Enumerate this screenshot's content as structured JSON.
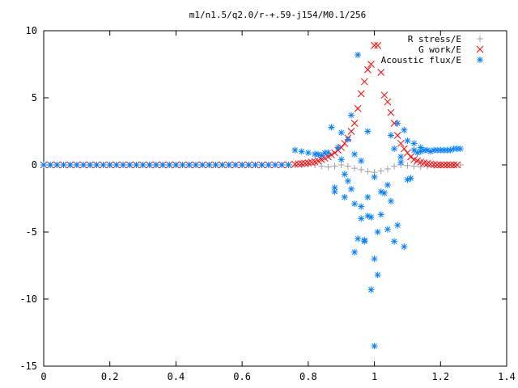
{
  "chart_data": {
    "type": "scatter",
    "title": "m1/n1.5/q2.0/r-+.59-j154/M0.1/256",
    "xlabel": "",
    "ylabel": "",
    "xlim": [
      0,
      1.4
    ],
    "ylim": [
      -15,
      10
    ],
    "x_ticks": [
      "0",
      "0.2",
      "0.4",
      "0.6",
      "0.8",
      "1",
      "1.2",
      "1.4"
    ],
    "y_ticks": [
      "10",
      "5",
      "0",
      "-5",
      "-10",
      "-15"
    ],
    "grid": false,
    "legend_position": "top-right",
    "series": [
      {
        "name": "R stress/E",
        "marker": "plus",
        "color": "#a0a0a0",
        "x": [
          0.0,
          0.02,
          0.04,
          0.06,
          0.08,
          0.1,
          0.12,
          0.14,
          0.16,
          0.18,
          0.2,
          0.22,
          0.24,
          0.26,
          0.28,
          0.3,
          0.32,
          0.34,
          0.36,
          0.38,
          0.4,
          0.42,
          0.44,
          0.46,
          0.48,
          0.5,
          0.52,
          0.54,
          0.56,
          0.58,
          0.6,
          0.62,
          0.64,
          0.66,
          0.68,
          0.7,
          0.72,
          0.74,
          0.76,
          0.78,
          0.8,
          0.82,
          0.84,
          0.86,
          0.88,
          0.9,
          0.92,
          0.94,
          0.96,
          0.98,
          1.0,
          1.02,
          1.04,
          1.06,
          1.08,
          1.1,
          1.12,
          1.14,
          1.16,
          1.18,
          1.2,
          1.22,
          1.24,
          1.26
        ],
        "y": [
          0,
          0,
          0,
          0,
          0,
          0,
          0,
          0,
          0,
          0,
          0,
          0,
          0,
          0,
          0,
          0,
          0,
          0,
          0,
          0,
          0,
          0,
          0,
          0,
          0,
          0,
          0,
          0,
          0,
          0,
          0,
          0,
          0,
          0,
          0,
          0,
          0,
          0,
          0,
          0,
          0.05,
          0.0,
          -0.1,
          -0.15,
          -0.1,
          0.0,
          -0.1,
          -0.25,
          -0.35,
          -0.5,
          -0.55,
          -0.45,
          -0.3,
          -0.1,
          0.0,
          -0.05,
          -0.1,
          -0.15,
          -0.1,
          -0.05,
          0.0,
          0.0,
          0.0,
          0.0
        ]
      },
      {
        "name": "G work/E",
        "marker": "cross",
        "color": "#ff0000",
        "x": [
          0.0,
          0.02,
          0.04,
          0.06,
          0.08,
          0.1,
          0.12,
          0.14,
          0.16,
          0.18,
          0.2,
          0.22,
          0.24,
          0.26,
          0.28,
          0.3,
          0.32,
          0.34,
          0.36,
          0.38,
          0.4,
          0.42,
          0.44,
          0.46,
          0.48,
          0.5,
          0.52,
          0.54,
          0.56,
          0.58,
          0.6,
          0.62,
          0.64,
          0.66,
          0.68,
          0.7,
          0.72,
          0.74,
          0.76,
          0.77,
          0.78,
          0.79,
          0.8,
          0.81,
          0.82,
          0.83,
          0.84,
          0.85,
          0.86,
          0.87,
          0.88,
          0.89,
          0.9,
          0.91,
          0.92,
          0.93,
          0.94,
          0.95,
          0.96,
          0.97,
          0.98,
          0.99,
          1.0,
          1.01,
          1.02,
          1.03,
          1.04,
          1.05,
          1.06,
          1.07,
          1.08,
          1.09,
          1.1,
          1.11,
          1.12,
          1.13,
          1.14,
          1.15,
          1.16,
          1.17,
          1.18,
          1.19,
          1.2,
          1.21,
          1.22,
          1.23,
          1.24,
          1.25
        ],
        "y": [
          0,
          0,
          0,
          0,
          0,
          0,
          0,
          0,
          0,
          0,
          0,
          0,
          0,
          0,
          0,
          0,
          0,
          0,
          0,
          0,
          0,
          0,
          0,
          0,
          0,
          0,
          0,
          0,
          0,
          0,
          0,
          0,
          0,
          0,
          0,
          0,
          0,
          0,
          0.05,
          0.08,
          0.1,
          0.12,
          0.15,
          0.2,
          0.25,
          0.3,
          0.4,
          0.5,
          0.6,
          0.75,
          0.9,
          1.1,
          1.3,
          1.6,
          2.0,
          2.5,
          3.1,
          4.2,
          5.3,
          6.2,
          7.1,
          7.5,
          8.9,
          8.9,
          6.9,
          5.2,
          4.7,
          3.9,
          3.1,
          2.2,
          1.6,
          1.2,
          0.9,
          0.6,
          0.4,
          0.3,
          0.2,
          0.15,
          0.1,
          0.05,
          0.02,
          0.0,
          0.0,
          0.0,
          0.0,
          0.0,
          0.0,
          0.0
        ]
      },
      {
        "name": "Acoustic flux/E",
        "marker": "star",
        "color": "#0080ff",
        "x": [
          0.0,
          0.02,
          0.04,
          0.06,
          0.08,
          0.1,
          0.12,
          0.14,
          0.16,
          0.18,
          0.2,
          0.22,
          0.24,
          0.26,
          0.28,
          0.3,
          0.32,
          0.34,
          0.36,
          0.38,
          0.4,
          0.42,
          0.44,
          0.46,
          0.48,
          0.5,
          0.52,
          0.54,
          0.56,
          0.58,
          0.6,
          0.62,
          0.64,
          0.66,
          0.68,
          0.7,
          0.72,
          0.74,
          0.76,
          0.78,
          0.8,
          0.82,
          0.84,
          0.86,
          0.87,
          0.88,
          0.89,
          0.9,
          0.91,
          0.92,
          0.93,
          0.94,
          0.95,
          0.96,
          0.97,
          0.98,
          0.99,
          1.0,
          1.01,
          1.02,
          1.03,
          1.04,
          1.05,
          1.06,
          1.07,
          1.08,
          1.09,
          1.1,
          1.11,
          1.12,
          1.13,
          1.14,
          1.15,
          1.16,
          1.17,
          1.18,
          1.19,
          1.2,
          1.21,
          1.22,
          1.23,
          1.24,
          1.25,
          1.26,
          0.83,
          0.85,
          0.88,
          0.9,
          0.92,
          0.94,
          0.95,
          0.96,
          0.97,
          0.98,
          0.99,
          1.0,
          1.01,
          1.02,
          1.04,
          1.06,
          1.08,
          1.1,
          1.12,
          1.14,
          1.0,
          0.98,
          0.96,
          0.94,
          0.93,
          0.91,
          1.05,
          1.07,
          1.09
        ],
        "y": [
          0,
          0,
          0,
          0,
          0,
          0,
          0,
          0,
          0,
          0,
          0,
          0,
          0,
          0,
          0,
          0,
          0,
          0,
          0,
          0,
          0,
          0,
          0,
          0,
          0,
          0,
          0,
          0,
          0,
          0,
          0,
          0,
          0,
          0,
          0,
          0,
          0,
          0,
          1.1,
          1.0,
          0.9,
          0.8,
          0.7,
          0.9,
          2.8,
          -1.7,
          1.3,
          2.4,
          -2.4,
          1.9,
          -1.8,
          -2.9,
          8.2,
          -3.1,
          -5.6,
          -2.4,
          -9.3,
          -7.0,
          -5.0,
          -3.7,
          -2.1,
          -1.5,
          -2.7,
          1.2,
          -4.5,
          0.2,
          -6.1,
          1.8,
          -1.0,
          1.1,
          0.9,
          1.0,
          1.1,
          1.1,
          1.0,
          1.1,
          1.1,
          1.1,
          1.1,
          1.1,
          1.1,
          1.2,
          1.2,
          1.2,
          0.8,
          0.9,
          -2.0,
          0.4,
          -1.2,
          -6.5,
          -5.5,
          -4.0,
          -5.7,
          -3.8,
          -3.9,
          -13.5,
          -8.2,
          -2.0,
          -4.8,
          -5.7,
          0.6,
          -1.1,
          1.6,
          1.3,
          -0.9,
          2.5,
          0.3,
          0.8,
          3.7,
          -0.7,
          2.2,
          3.1,
          2.6
        ]
      }
    ]
  }
}
